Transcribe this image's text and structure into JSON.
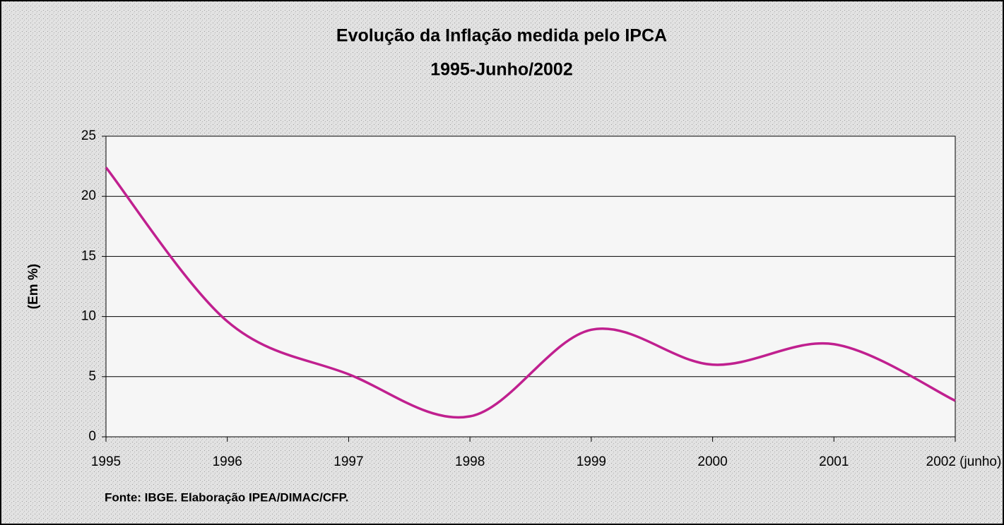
{
  "chart_data": {
    "type": "line",
    "title": "Evolução da Inflação medida pelo IPCA",
    "subtitle": "1995-Junho/2002",
    "y_label": "(Em %)",
    "source": "Fonte: IBGE. Elaboração IPEA/DIMAC/CFP.",
    "categories": [
      "1995",
      "1996",
      "1997",
      "1998",
      "1999",
      "2000",
      "2001",
      "2002 (junho)"
    ],
    "series": [
      {
        "name": "IPCA",
        "color": "#c0208f",
        "values": [
          22.4,
          9.6,
          5.2,
          1.7,
          8.9,
          6.0,
          7.7,
          3.0
        ]
      }
    ],
    "smooth": true,
    "ylim": [
      0,
      25
    ],
    "yticks": [
      0,
      5,
      10,
      15,
      20,
      25
    ],
    "grid": true
  }
}
